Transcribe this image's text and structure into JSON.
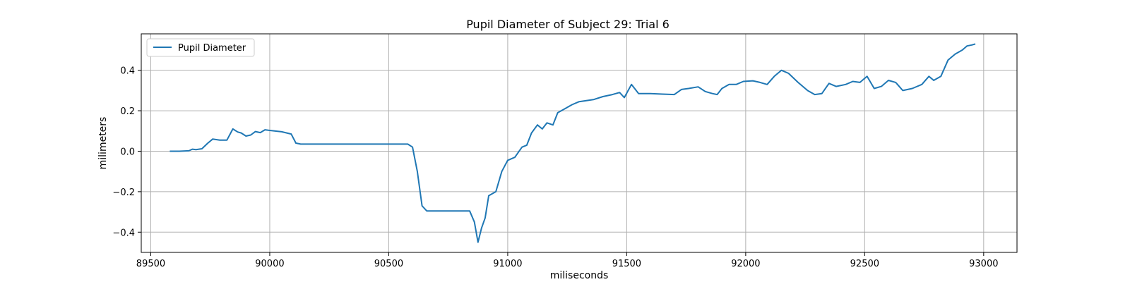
{
  "chart_data": {
    "type": "line",
    "title": "Pupil Diameter of Subject 29: Trial 6",
    "xlabel": "miliseconds",
    "ylabel": "milimeters",
    "xlim": [
      89460,
      93140
    ],
    "ylim": [
      -0.5,
      0.58
    ],
    "xticks": [
      89500,
      90000,
      90500,
      91000,
      91500,
      92000,
      92500,
      93000
    ],
    "yticks": [
      -0.4,
      -0.2,
      0.0,
      0.2,
      0.4
    ],
    "xtick_labels": [
      "89500",
      "90000",
      "90500",
      "91000",
      "91500",
      "92000",
      "92500",
      "93000"
    ],
    "ytick_labels": [
      "−0.4",
      "−0.2",
      "0.0",
      "0.2",
      "0.4"
    ],
    "grid": true,
    "legend_position": "top-left",
    "series": [
      {
        "name": "Pupil Diameter",
        "color": "#1f77b4",
        "points": [
          [
            89580,
            0.0
          ],
          [
            89620,
            0.0
          ],
          [
            89660,
            0.002
          ],
          [
            89675,
            0.01
          ],
          [
            89690,
            0.008
          ],
          [
            89715,
            0.012
          ],
          [
            89740,
            0.04
          ],
          [
            89760,
            0.06
          ],
          [
            89790,
            0.055
          ],
          [
            89820,
            0.055
          ],
          [
            89845,
            0.11
          ],
          [
            89865,
            0.095
          ],
          [
            89880,
            0.09
          ],
          [
            89900,
            0.075
          ],
          [
            89920,
            0.08
          ],
          [
            89940,
            0.097
          ],
          [
            89960,
            0.092
          ],
          [
            89980,
            0.106
          ],
          [
            90020,
            0.1
          ],
          [
            90050,
            0.096
          ],
          [
            90090,
            0.085
          ],
          [
            90110,
            0.04
          ],
          [
            90130,
            0.035
          ],
          [
            90300,
            0.035
          ],
          [
            90450,
            0.035
          ],
          [
            90580,
            0.035
          ],
          [
            90600,
            0.02
          ],
          [
            90620,
            -0.1
          ],
          [
            90640,
            -0.27
          ],
          [
            90660,
            -0.295
          ],
          [
            90750,
            -0.295
          ],
          [
            90840,
            -0.295
          ],
          [
            90860,
            -0.35
          ],
          [
            90875,
            -0.45
          ],
          [
            90890,
            -0.38
          ],
          [
            90905,
            -0.33
          ],
          [
            90920,
            -0.22
          ],
          [
            90935,
            -0.21
          ],
          [
            90950,
            -0.2
          ],
          [
            90975,
            -0.1
          ],
          [
            91000,
            -0.045
          ],
          [
            91030,
            -0.03
          ],
          [
            91060,
            0.02
          ],
          [
            91080,
            0.03
          ],
          [
            91100,
            0.09
          ],
          [
            91125,
            0.13
          ],
          [
            91145,
            0.11
          ],
          [
            91165,
            0.14
          ],
          [
            91190,
            0.13
          ],
          [
            91210,
            0.19
          ],
          [
            91240,
            0.21
          ],
          [
            91270,
            0.23
          ],
          [
            91300,
            0.245
          ],
          [
            91330,
            0.25
          ],
          [
            91360,
            0.255
          ],
          [
            91400,
            0.27
          ],
          [
            91440,
            0.28
          ],
          [
            91470,
            0.29
          ],
          [
            91490,
            0.265
          ],
          [
            91520,
            0.33
          ],
          [
            91550,
            0.285
          ],
          [
            91600,
            0.285
          ],
          [
            91650,
            0.282
          ],
          [
            91700,
            0.28
          ],
          [
            91730,
            0.305
          ],
          [
            91760,
            0.31
          ],
          [
            91800,
            0.318
          ],
          [
            91830,
            0.295
          ],
          [
            91860,
            0.285
          ],
          [
            91880,
            0.28
          ],
          [
            91900,
            0.31
          ],
          [
            91930,
            0.33
          ],
          [
            91960,
            0.33
          ],
          [
            91990,
            0.345
          ],
          [
            92030,
            0.348
          ],
          [
            92060,
            0.34
          ],
          [
            92090,
            0.33
          ],
          [
            92120,
            0.37
          ],
          [
            92150,
            0.4
          ],
          [
            92180,
            0.385
          ],
          [
            92220,
            0.34
          ],
          [
            92260,
            0.3
          ],
          [
            92290,
            0.28
          ],
          [
            92320,
            0.285
          ],
          [
            92350,
            0.335
          ],
          [
            92380,
            0.32
          ],
          [
            92420,
            0.33
          ],
          [
            92450,
            0.345
          ],
          [
            92480,
            0.34
          ],
          [
            92510,
            0.37
          ],
          [
            92540,
            0.31
          ],
          [
            92570,
            0.32
          ],
          [
            92600,
            0.35
          ],
          [
            92630,
            0.34
          ],
          [
            92660,
            0.3
          ],
          [
            92700,
            0.31
          ],
          [
            92740,
            0.33
          ],
          [
            92770,
            0.37
          ],
          [
            92790,
            0.35
          ],
          [
            92820,
            0.37
          ],
          [
            92850,
            0.45
          ],
          [
            92880,
            0.48
          ],
          [
            92910,
            0.5
          ],
          [
            92930,
            0.52
          ],
          [
            92950,
            0.525
          ],
          [
            92965,
            0.53
          ]
        ]
      }
    ]
  }
}
